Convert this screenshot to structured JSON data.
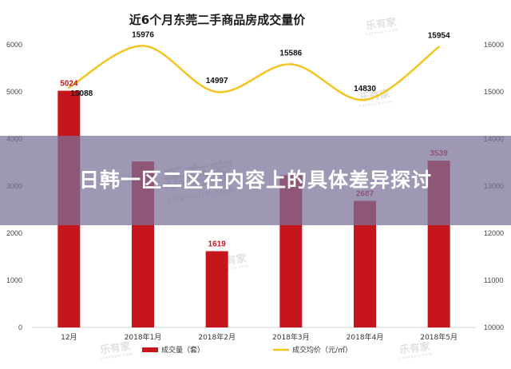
{
  "overlay": {
    "title": "日韩一区二区在内容上的具体差异探讨"
  },
  "watermarks": [
    {
      "main": "乐有家",
      "sub": "Leyoujia.com"
    },
    {
      "main": "乐有家",
      "sub": "Leyoujia.com"
    },
    {
      "main": "乐有家",
      "sub": "Leyoujia.com"
    },
    {
      "main": "乐有家",
      "sub": "Leyoujia.com"
    },
    {
      "main": "乐有家",
      "sub": "Leyoujia.com"
    },
    {
      "main": "乐有家",
      "sub": "Leyoujia.com"
    }
  ],
  "colors": {
    "bar": "#c5161d",
    "line": "#f2c523",
    "bar_label": "#c5161d",
    "axis": "#d0d0d0"
  },
  "chart_data": {
    "type": "bar",
    "title": "近6个月东莞二手商品房成交量价",
    "categories": [
      "12月",
      "2018年1月",
      "2018年2月",
      "2018年3月",
      "2018年4月",
      "2018年5月"
    ],
    "ylim": [
      0,
      6000
    ],
    "yticks": [
      0,
      1000,
      2000,
      3000,
      4000,
      5000,
      6000
    ],
    "y2lim": [
      10000,
      16000
    ],
    "y2ticks": [
      10000,
      11000,
      12000,
      13000,
      14000,
      15000,
      16000
    ],
    "series": [
      {
        "name": "成交量（套）",
        "type": "bar",
        "axis": "left",
        "values": [
          5024,
          3523,
          1619,
          3231,
          2687,
          3539
        ],
        "labels": [
          "5024",
          "",
          "1619",
          "",
          "2687",
          "3539"
        ]
      },
      {
        "name": "成交均价（元/㎡）",
        "type": "line",
        "axis": "right",
        "values": [
          15088,
          15976,
          14997,
          15586,
          14830,
          15954
        ],
        "labels": [
          "15088",
          "15976",
          "14997",
          "15586",
          "14830",
          "15954"
        ]
      }
    ],
    "legend_position": "bottom",
    "grid": false
  }
}
